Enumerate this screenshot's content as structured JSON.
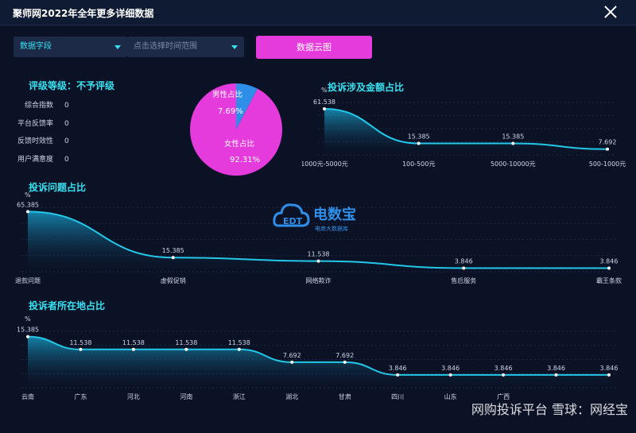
{
  "window": {
    "title": "聚师网2022年全年更多详细数据"
  },
  "filters": {
    "field_label": "数据字段",
    "time_placeholder": "点击选择时间范围",
    "cloud_button": "数据云图"
  },
  "rating": {
    "title": "评级等级：不予评级",
    "rows": [
      {
        "label": "综合指数",
        "value": "0"
      },
      {
        "label": "平台反馈率",
        "value": "0"
      },
      {
        "label": "反馈时效性",
        "value": "0"
      },
      {
        "label": "用户满意度",
        "value": "0"
      }
    ]
  },
  "gender_pie": {
    "type": "pie",
    "slices": [
      {
        "label": "男性占比",
        "value": 7.69,
        "value_label": "7.69%",
        "color": "#2f8fe8"
      },
      {
        "label": "女性占比",
        "value": 92.31,
        "value_label": "92.31%",
        "color": "#e53bdc"
      }
    ]
  },
  "watermark": {
    "brand": "电数宝",
    "sub": "电商大数据库",
    "logo_text": "EDT"
  },
  "wechat_tag": "网购投诉平台 雪球：网经宝",
  "chart_data": [
    {
      "type": "area",
      "title": "投诉涉及金额占比",
      "ylabel": "%",
      "categories": [
        "1000元-5000元",
        "100-500元",
        "5000-10000元",
        "500-1000元"
      ],
      "values": [
        61.538,
        15.385,
        15.385,
        7.692
      ],
      "value_labels": [
        "61.538",
        "15.385",
        "15.385",
        "7.692"
      ],
      "ylim": [
        0,
        70
      ]
    },
    {
      "type": "area",
      "title": "投诉问题占比",
      "ylabel": "%",
      "categories": [
        "退款问题",
        "虚假促销",
        "网络欺诈",
        "售后服务",
        "霸王条款"
      ],
      "values": [
        65.385,
        15.385,
        11.538,
        3.846,
        3.846
      ],
      "value_labels": [
        "65.385",
        "15.385",
        "11.538",
        "3.846",
        "3.846"
      ],
      "ylim": [
        0,
        70
      ]
    },
    {
      "type": "area",
      "title": "投诉者所在地占比",
      "ylabel": "%",
      "categories": [
        "云南",
        "广东",
        "河北",
        "河南",
        "浙江",
        "湖北",
        "甘肃",
        "四川",
        "山东",
        "广西",
        "",
        ""
      ],
      "values": [
        15.385,
        11.538,
        11.538,
        11.538,
        11.538,
        7.692,
        7.692,
        3.846,
        3.846,
        3.846,
        3.846,
        3.846
      ],
      "value_labels": [
        "15.385",
        "11.538",
        "11.538",
        "11.538",
        "11.538",
        "7.692",
        "7.692",
        "3.846",
        "3.846",
        "3.846",
        "3.846",
        "3.846"
      ],
      "ylim": [
        0,
        17
      ]
    }
  ]
}
